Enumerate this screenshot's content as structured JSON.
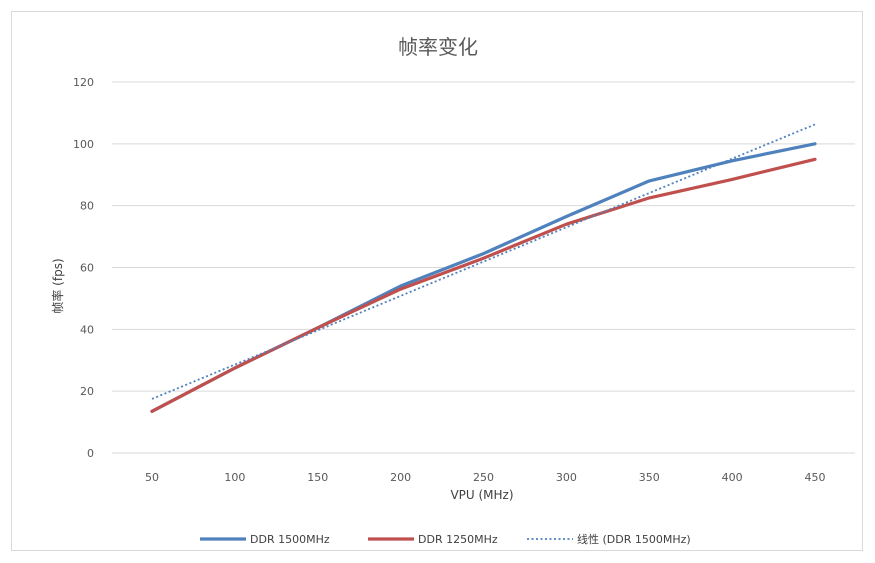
{
  "chart_data": {
    "type": "line",
    "title": "帧率变化",
    "xlabel": "VPU (MHz)",
    "ylabel": "帧率 (fps)",
    "x": [
      50,
      100,
      150,
      200,
      250,
      300,
      350,
      400,
      450
    ],
    "xlim": [
      50,
      450
    ],
    "ylim": [
      0,
      120
    ],
    "yticks": [
      0,
      20,
      40,
      60,
      80,
      100,
      120
    ],
    "grid": true,
    "legend_position": "bottom",
    "series": [
      {
        "name": "DDR 1500MHz",
        "color": "#4f81bd",
        "style": "solid",
        "values": [
          13.5,
          27.5,
          40.5,
          54,
          64.5,
          76.5,
          88,
          94.5,
          100
        ]
      },
      {
        "name": "DDR 1250MHz",
        "color": "#c0504d",
        "style": "solid",
        "values": [
          13.5,
          27.5,
          40.5,
          53,
          63,
          74,
          82.5,
          88.5,
          95
        ]
      },
      {
        "name": "线性 (DDR 1500MHz)",
        "color": "#4f81bd",
        "style": "dotted",
        "values": [
          17.5,
          28.6,
          39.7,
          50.8,
          61.9,
          73.0,
          84.1,
          95.2,
          106.3
        ]
      }
    ]
  }
}
